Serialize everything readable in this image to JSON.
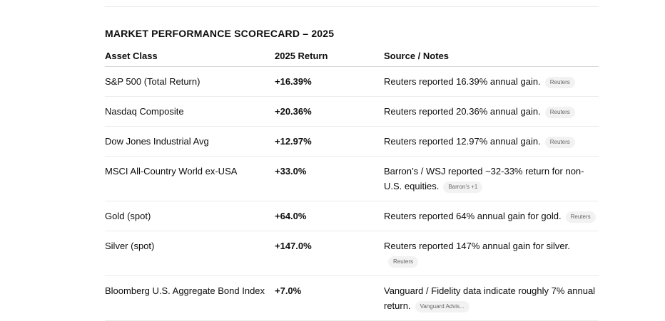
{
  "title": "MARKET PERFORMANCE SCORECARD – 2025",
  "headers": [
    "Asset Class",
    "2025 Return",
    "Source / Notes"
  ],
  "rows": [
    {
      "asset": "S&P 500 (Total Return)",
      "ret": "+16.39%",
      "note": "Reuters reported 16.39% annual gain.",
      "chip": "Reuters"
    },
    {
      "asset": "Nasdaq Composite",
      "ret": "+20.36%",
      "note": "Reuters reported 20.36% annual gain.",
      "chip": "Reuters"
    },
    {
      "asset": "Dow Jones Industrial Avg",
      "ret": "+12.97%",
      "note": "Reuters reported 12.97% annual gain.",
      "chip": "Reuters"
    },
    {
      "asset": "MSCI All-Country World ex-USA",
      "ret": "+33.0%",
      "note": "Barron’s / WSJ reported ~32-33% return for non-U.S. equities.",
      "chip": "Barron’s +1"
    },
    {
      "asset": "Gold (spot)",
      "ret": "+64.0%",
      "note": "Reuters reported 64% annual gain for gold.",
      "chip": "Reuters"
    },
    {
      "asset": "Silver (spot)",
      "ret": "+147.0%",
      "note": "Reuters reported 147% annual gain for silver.",
      "chip": "Reuters"
    },
    {
      "asset": "Bloomberg U.S. Aggregate Bond Index",
      "ret": "+7.0%",
      "note": "Vanguard / Fidelity data indicate roughly 7% annual return.",
      "chip": "Vanguard Advis..."
    }
  ]
}
